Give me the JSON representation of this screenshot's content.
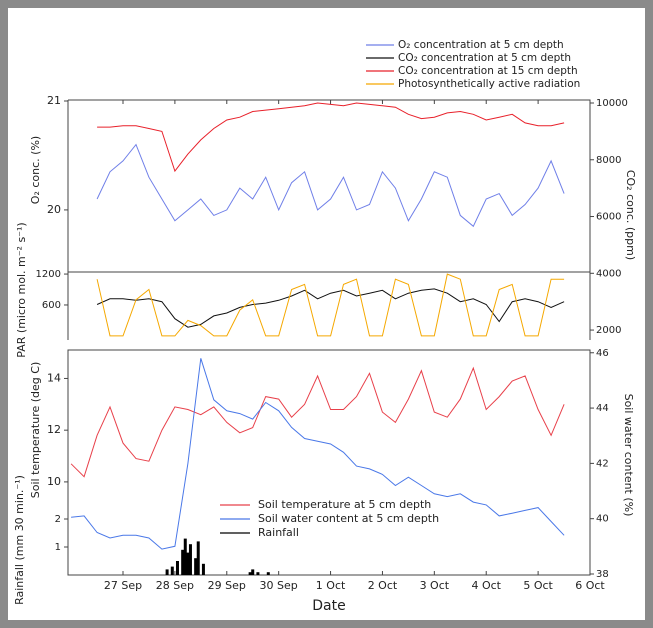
{
  "chart_data": [
    {
      "type": "line",
      "ylabel": "O₂ conc. (%)",
      "par_ylabel": "PAR (micro mol. m⁻² s⁻¹)",
      "y2label": "CO₂ conc. (ppm)",
      "xlim": [
        -0.06,
        10
      ],
      "ylim": [
        19.43,
        21
      ],
      "yticks": [
        20,
        21
      ],
      "par_ylim": [
        -80,
        1240
      ],
      "par_yticks": [
        600,
        1200
      ],
      "y2lim": [
        1650,
        10070
      ],
      "y2ticks": [
        2000,
        4000,
        6000,
        8000,
        10000
      ],
      "x": [
        0.5,
        0.75,
        1,
        1.25,
        1.5,
        1.75,
        2,
        2.25,
        2.5,
        2.75,
        3,
        3.25,
        3.5,
        3.75,
        4,
        4.25,
        4.5,
        4.75,
        5,
        5.25,
        5.5,
        5.75,
        6,
        6.25,
        6.5,
        6.75,
        7,
        7.25,
        7.5,
        7.75,
        8,
        8.25,
        8.5,
        8.75,
        9,
        9.25,
        9.5
      ],
      "series": [
        {
          "name": "O₂ concentration at 5 cm depth",
          "color": "#6f7fe8",
          "axis": "y",
          "values": [
            20.1,
            20.35,
            20.45,
            20.6,
            20.3,
            20.1,
            19.9,
            20.0,
            20.1,
            19.95,
            20.0,
            20.2,
            20.1,
            20.3,
            20.0,
            20.25,
            20.35,
            20.0,
            20.1,
            20.3,
            20.0,
            20.05,
            20.35,
            20.2,
            19.9,
            20.1,
            20.35,
            20.3,
            19.95,
            19.85,
            20.1,
            20.15,
            19.95,
            20.05,
            20.2,
            20.45,
            20.15
          ]
        },
        {
          "name": "CO₂ concentration at 5 cm depth",
          "color": "#111111",
          "axis": "y2",
          "values": [
            2900,
            3100,
            3100,
            3050,
            3100,
            3000,
            2400,
            2100,
            2200,
            2500,
            2600,
            2800,
            2900,
            2950,
            3050,
            3200,
            3400,
            3100,
            3300,
            3400,
            3200,
            3300,
            3400,
            3100,
            3300,
            3400,
            3450,
            3300,
            3000,
            3100,
            2900,
            2300,
            3000,
            3100,
            3000,
            2800,
            3000
          ]
        },
        {
          "name": "CO₂ concentration at 15 cm depth",
          "color": "#e8202a",
          "axis": "y2",
          "values": [
            9150,
            9150,
            9200,
            9200,
            9100,
            9000,
            7600,
            8200,
            8700,
            9100,
            9400,
            9500,
            9700,
            9750,
            9800,
            9850,
            9900,
            10000,
            9950,
            9900,
            10000,
            9950,
            9900,
            9850,
            9600,
            9450,
            9500,
            9650,
            9700,
            9600,
            9400,
            9500,
            9600,
            9300,
            9200,
            9200,
            9300
          ]
        },
        {
          "name": "Photosynthetically active radiation",
          "color": "#f5a800",
          "axis": "par",
          "values": [
            1100,
            0,
            0,
            700,
            900,
            0,
            0,
            300,
            200,
            0,
            0,
            500,
            700,
            0,
            0,
            900,
            1000,
            0,
            0,
            1000,
            1100,
            0,
            0,
            1100,
            1000,
            0,
            0,
            1200,
            1100,
            0,
            0,
            900,
            1000,
            0,
            0,
            1100,
            1100
          ]
        }
      ]
    },
    {
      "type": "line",
      "ylabel": "Soil temperature (deg C)",
      "y2label": "Soil water content (%)",
      "rain_ylabel": "Rainfall (mm 30 min.⁻¹)",
      "xlabel": "Date",
      "xlim": [
        -0.06,
        10
      ],
      "xticks": [
        {
          "value": 1,
          "label": "27 Sep"
        },
        {
          "value": 2,
          "label": "28 Sep"
        },
        {
          "value": 3,
          "label": "29 Sep"
        },
        {
          "value": 4,
          "label": "30 Sep"
        },
        {
          "value": 5,
          "label": "1 Oct"
        },
        {
          "value": 6,
          "label": "2 Oct"
        },
        {
          "value": 7,
          "label": "3 Oct"
        },
        {
          "value": 8,
          "label": "4 Oct"
        },
        {
          "value": 9,
          "label": "5 Oct"
        },
        {
          "value": 10,
          "label": "6 Oct"
        }
      ],
      "ylim": [
        9.3,
        15.1
      ],
      "yticks": [
        10,
        12,
        14
      ],
      "y2lim": [
        38,
        46.1
      ],
      "y2ticks": [
        38,
        40,
        42,
        44,
        46
      ],
      "rain_ylim": [
        0,
        2.5
      ],
      "rain_yticks": [
        1,
        2
      ],
      "x": [
        0,
        0.25,
        0.5,
        0.75,
        1,
        1.25,
        1.5,
        1.75,
        2,
        2.25,
        2.5,
        2.75,
        3,
        3.25,
        3.5,
        3.75,
        4,
        4.25,
        4.5,
        4.75,
        5,
        5.25,
        5.5,
        5.75,
        6,
        6.25,
        6.5,
        6.75,
        7,
        7.25,
        7.5,
        7.75,
        8,
        8.25,
        8.5,
        8.75,
        9,
        9.25,
        9.5
      ],
      "series": [
        {
          "name": "Soil temperature at 5 cm depth",
          "color": "#e8404a",
          "axis": "y",
          "values": [
            10.7,
            10.2,
            11.8,
            12.9,
            11.5,
            10.9,
            10.8,
            12.0,
            12.9,
            12.8,
            12.6,
            12.9,
            12.3,
            11.9,
            12.1,
            13.3,
            13.2,
            12.5,
            13.0,
            14.1,
            12.8,
            12.8,
            13.3,
            14.2,
            12.7,
            12.3,
            13.2,
            14.3,
            12.7,
            12.5,
            13.2,
            14.4,
            12.8,
            13.3,
            13.9,
            14.1,
            12.8,
            11.8,
            13.0
          ]
        },
        {
          "name": "Soil water content at 5 cm depth",
          "color": "#4a78e8",
          "axis": "y2",
          "values": [
            40.05,
            40.1,
            39.5,
            39.3,
            39.4,
            39.4,
            39.3,
            38.9,
            39.0,
            42.0,
            45.8,
            44.3,
            43.9,
            43.8,
            43.6,
            44.2,
            43.9,
            43.3,
            42.9,
            42.8,
            42.7,
            42.4,
            41.9,
            41.8,
            41.6,
            41.2,
            41.5,
            41.2,
            40.9,
            40.8,
            40.9,
            40.6,
            40.5,
            40.1,
            40.2,
            40.3,
            40.4,
            39.9,
            39.4
          ]
        },
        {
          "name": "Rainfall",
          "color": "#000000",
          "axis": "rain",
          "type": "bar",
          "x": [
            1.85,
            1.95,
            2.05,
            2.15,
            2.2,
            2.25,
            2.3,
            2.4,
            2.45,
            2.55,
            3.45,
            3.5,
            3.6,
            3.8
          ],
          "values": [
            0.2,
            0.3,
            0.5,
            0.9,
            1.3,
            0.8,
            1.1,
            0.6,
            1.2,
            0.4,
            0.1,
            0.2,
            0.1,
            0.1
          ]
        }
      ]
    }
  ]
}
